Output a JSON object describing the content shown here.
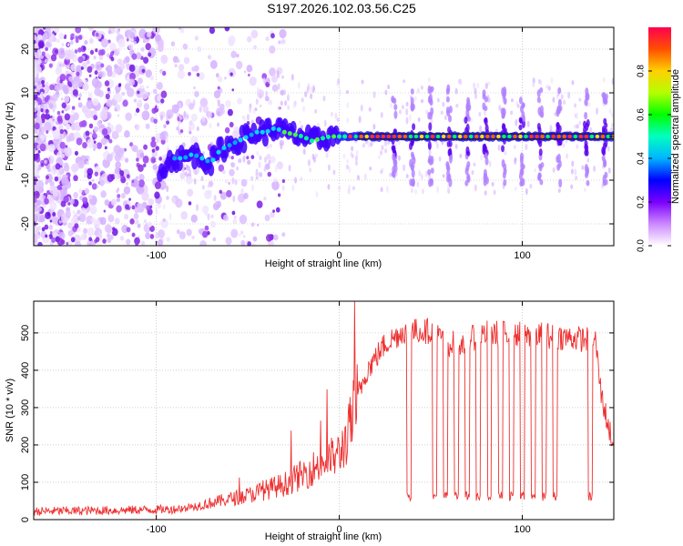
{
  "title": "S197.2026.102.03.56.C25",
  "colors": {
    "snr_line": "#ee3030",
    "grid": "#b0b0b0",
    "ridge_core": "#1a1a1a"
  },
  "chart_data": [
    {
      "type": "heatmap",
      "xlabel": "Height of straight line (km)",
      "ylabel": "Frequency (Hz)",
      "xlim": [
        -167,
        150
      ],
      "ylim": [
        -25,
        25
      ],
      "xticks": [
        -100,
        0,
        100
      ],
      "yticks": [
        -20,
        -10,
        0,
        10,
        20
      ],
      "grid": true,
      "ridge": [
        {
          "x": -97,
          "y": -7
        },
        {
          "x": -90,
          "y": -5
        },
        {
          "x": -85,
          "y": -5
        },
        {
          "x": -80,
          "y": -4
        },
        {
          "x": -75,
          "y": -5
        },
        {
          "x": -70,
          "y": -6
        },
        {
          "x": -65,
          "y": -3
        },
        {
          "x": -60,
          "y": -2
        },
        {
          "x": -55,
          "y": -1
        },
        {
          "x": -50,
          "y": 0
        },
        {
          "x": -45,
          "y": 1
        },
        {
          "x": -40,
          "y": 1
        },
        {
          "x": -35,
          "y": 2
        },
        {
          "x": -30,
          "y": 1
        },
        {
          "x": -25,
          "y": 0.5
        },
        {
          "x": -20,
          "y": 0
        },
        {
          "x": -15,
          "y": -1
        },
        {
          "x": -10,
          "y": -0.5
        },
        {
          "x": -5,
          "y": 0
        },
        {
          "x": 0,
          "y": 0
        },
        {
          "x": 10,
          "y": 0
        },
        {
          "x": 150,
          "y": 0
        }
      ],
      "high_bursts_x": [
        30,
        40,
        50,
        60,
        70,
        80,
        90,
        100,
        110,
        120,
        135,
        145
      ],
      "colorbar": {
        "label": "Normalized spectral amplitude",
        "range": [
          0.0,
          1.0
        ],
        "ticks": [
          "0.0",
          "0.2",
          "0.4",
          "0.6",
          "0.8"
        ],
        "stops": [
          "#ffffff",
          "#cc88ff",
          "#7a00ff",
          "#0000ff",
          "#00b4ff",
          "#00ffc0",
          "#00ff00",
          "#b4ff00",
          "#ffd000",
          "#ff5000",
          "#ff0050"
        ]
      }
    },
    {
      "type": "line",
      "xlabel": "Height of straight line (km)",
      "ylabel": "SNR (10 * v/v)",
      "xlim": [
        -167,
        150
      ],
      "ylim": [
        0,
        585
      ],
      "xticks": [
        -100,
        0,
        100
      ],
      "yticks": [
        0,
        100,
        200,
        300,
        400,
        500
      ],
      "grid": true,
      "profile": [
        {
          "x": -167,
          "y": 22
        },
        {
          "x": -120,
          "y": 25
        },
        {
          "x": -90,
          "y": 28
        },
        {
          "x": -80,
          "y": 35
        },
        {
          "x": -70,
          "y": 45
        },
        {
          "x": -60,
          "y": 55
        },
        {
          "x": -50,
          "y": 65
        },
        {
          "x": -40,
          "y": 80
        },
        {
          "x": -30,
          "y": 95
        },
        {
          "x": -20,
          "y": 120
        },
        {
          "x": -10,
          "y": 150
        },
        {
          "x": 0,
          "y": 175
        },
        {
          "x": 5,
          "y": 230
        },
        {
          "x": 10,
          "y": 330
        },
        {
          "x": 15,
          "y": 400
        },
        {
          "x": 25,
          "y": 470
        },
        {
          "x": 35,
          "y": 505
        },
        {
          "x": 50,
          "y": 505
        },
        {
          "x": 60,
          "y": 470
        },
        {
          "x": 70,
          "y": 480
        },
        {
          "x": 80,
          "y": 500
        },
        {
          "x": 110,
          "y": 495
        },
        {
          "x": 140,
          "y": 480
        },
        {
          "x": 143,
          "y": 340
        },
        {
          "x": 147,
          "y": 250
        },
        {
          "x": 150,
          "y": 200
        }
      ],
      "dips_x": [
        38,
        52,
        58,
        64,
        70,
        76,
        82,
        88,
        94,
        100,
        106,
        112,
        118,
        137
      ]
    }
  ]
}
